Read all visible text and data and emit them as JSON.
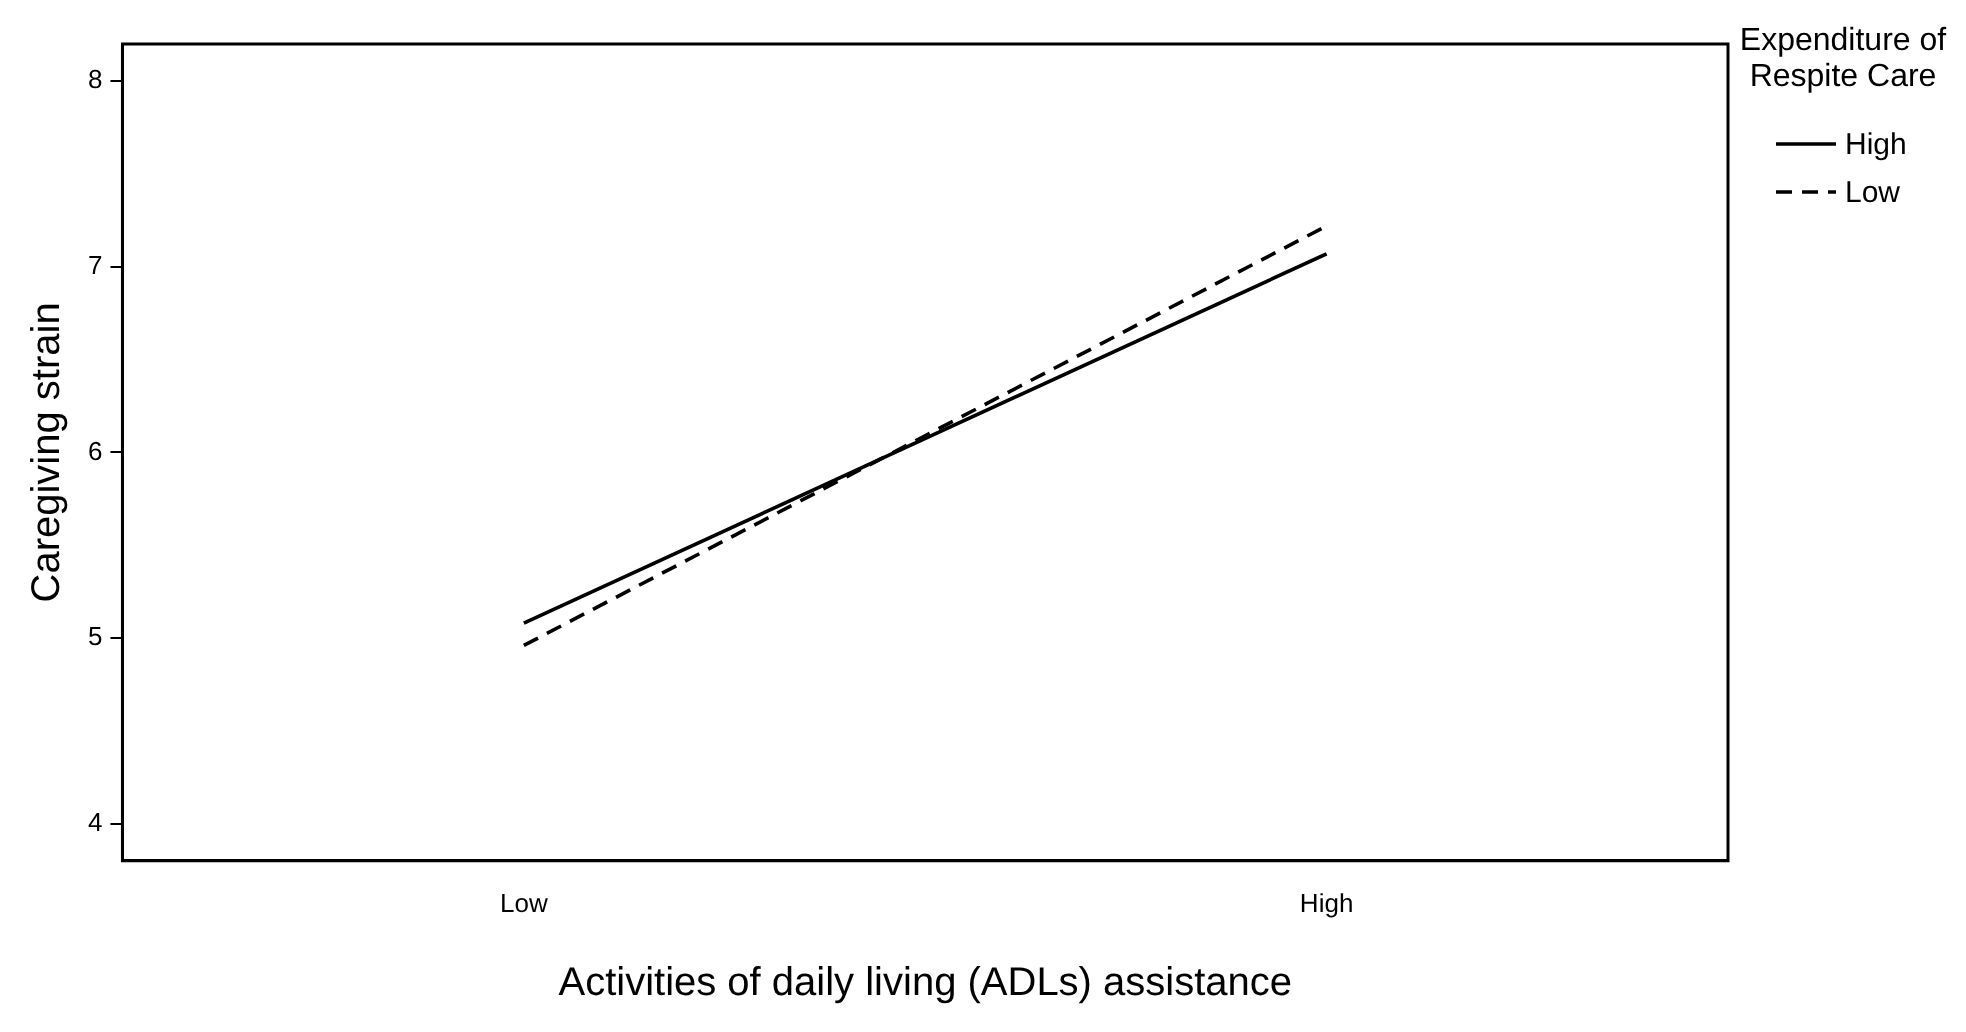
{
  "chart_data": {
    "type": "line",
    "xlabel": "Activities of daily living (ADLs) assistance",
    "ylabel": "Caregiving strain",
    "legend_title": "Expenditure of Respite Care",
    "categories": [
      "Low",
      "High"
    ],
    "series": [
      {
        "name": "High",
        "color": "#000000",
        "values": [
          5.08,
          7.07
        ],
        "line_style": "solid"
      },
      {
        "name": "Low",
        "color": "#000000",
        "values": [
          4.96,
          7.22
        ],
        "line_style": "dashed"
      }
    ],
    "ylim": [
      3.8,
      8.2
    ],
    "yticks": [
      4,
      5,
      6,
      7,
      8
    ],
    "grid": false,
    "legend": "right",
    "marker": "none"
  }
}
